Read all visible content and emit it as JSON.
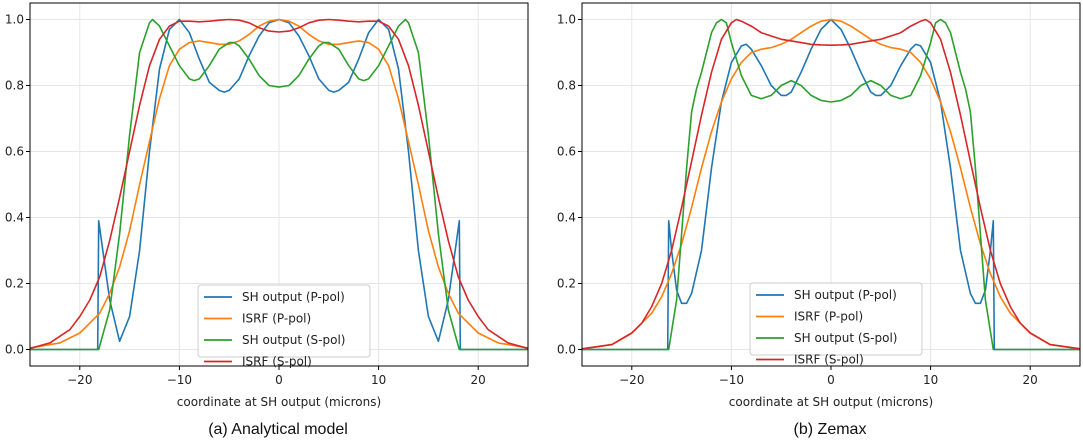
{
  "chart_data": [
    {
      "type": "line",
      "caption": "(a) Analytical model",
      "xlabel": "coordinate at SH output (microns)",
      "ylabel": "",
      "xlim": [
        -25,
        25
      ],
      "ylim": [
        -0.05,
        1.05
      ],
      "xticks": [
        -20,
        -10,
        0,
        10,
        20
      ],
      "xtick_labels": [
        "−20",
        "−10",
        "0",
        "10",
        "20"
      ],
      "yticks": [
        0.0,
        0.2,
        0.4,
        0.6,
        0.8,
        1.0
      ],
      "ytick_labels": [
        "0.0",
        "0.2",
        "0.4",
        "0.6",
        "0.8",
        "1.0"
      ],
      "grid": true,
      "legend_position": "lower-center",
      "symmetric_about_zero": true,
      "series": [
        {
          "name": "SH output (P-pol)",
          "color": "#1f77b4",
          "x": [
            -25,
            -18.2,
            -18.1,
            -17,
            -16,
            -15,
            -14,
            -13,
            -12,
            -11,
            -10,
            -9,
            -8,
            -7,
            -6,
            -5.5,
            -5,
            -4,
            -3,
            -2,
            -1,
            0
          ],
          "y": [
            0,
            0,
            0.39,
            0.15,
            0.025,
            0.1,
            0.3,
            0.6,
            0.85,
            0.97,
            1.0,
            0.96,
            0.88,
            0.81,
            0.785,
            0.78,
            0.785,
            0.82,
            0.89,
            0.95,
            0.99,
            1.0
          ]
        },
        {
          "name": "ISRF (P-pol)",
          "color": "#ff7f0e",
          "x": [
            -25,
            -22,
            -20,
            -18,
            -17,
            -16,
            -15,
            -14,
            -13,
            -12,
            -11,
            -10,
            -9,
            -8,
            -7,
            -6,
            -5,
            -4,
            -3,
            -2,
            -1,
            0
          ],
          "y": [
            0.005,
            0.02,
            0.05,
            0.11,
            0.17,
            0.25,
            0.36,
            0.5,
            0.63,
            0.76,
            0.86,
            0.91,
            0.93,
            0.935,
            0.93,
            0.925,
            0.925,
            0.935,
            0.955,
            0.98,
            0.995,
            1.0
          ]
        },
        {
          "name": "SH output (S-pol)",
          "color": "#2ca02c",
          "x": [
            -25,
            -18.1,
            -17,
            -16,
            -15,
            -14,
            -13,
            -12.7,
            -12,
            -11,
            -10,
            -9,
            -8.5,
            -8,
            -7,
            -6,
            -5,
            -4.5,
            -4,
            -3,
            -2,
            -1,
            0
          ],
          "y": [
            0,
            0,
            0.12,
            0.35,
            0.65,
            0.9,
            0.99,
            1.0,
            0.98,
            0.92,
            0.86,
            0.82,
            0.815,
            0.82,
            0.86,
            0.91,
            0.93,
            0.93,
            0.92,
            0.88,
            0.83,
            0.8,
            0.795
          ]
        },
        {
          "name": "ISRF (S-pol)",
          "color": "#d62728",
          "x": [
            -25,
            -23,
            -21,
            -20,
            -19,
            -18,
            -17,
            -16,
            -15,
            -14,
            -13,
            -12,
            -11,
            -10,
            -9,
            -8,
            -7,
            -6,
            -5,
            -4,
            -3,
            -2,
            -1,
            0
          ],
          "y": [
            0.003,
            0.02,
            0.06,
            0.1,
            0.15,
            0.22,
            0.33,
            0.46,
            0.6,
            0.74,
            0.86,
            0.94,
            0.98,
            0.995,
            0.995,
            0.993,
            0.995,
            0.998,
            1.0,
            0.998,
            0.99,
            0.975,
            0.965,
            0.962
          ]
        }
      ]
    },
    {
      "type": "line",
      "caption": "(b) Zemax",
      "xlabel": "coordinate at SH output (microns)",
      "ylabel": "",
      "xlim": [
        -25,
        25
      ],
      "ylim": [
        -0.05,
        1.05
      ],
      "xticks": [
        -20,
        -10,
        0,
        10,
        20
      ],
      "xtick_labels": [
        "−20",
        "−10",
        "0",
        "10",
        "20"
      ],
      "yticks": [
        0.0,
        0.2,
        0.4,
        0.6,
        0.8,
        1.0
      ],
      "ytick_labels": [
        "0.0",
        "0.2",
        "0.4",
        "0.6",
        "0.8",
        "1.0"
      ],
      "grid": true,
      "legend_position": "lower-center",
      "symmetric_about_zero": true,
      "series": [
        {
          "name": "SH output (P-pol)",
          "color": "#1f77b4",
          "x": [
            -25,
            -16.4,
            -16.3,
            -16,
            -15.5,
            -15,
            -14.5,
            -14,
            -13,
            -12,
            -11,
            -10,
            -9,
            -8.5,
            -8,
            -7,
            -6,
            -5,
            -4.5,
            -4,
            -3,
            -2,
            -1,
            0
          ],
          "y": [
            0,
            0,
            0.39,
            0.3,
            0.18,
            0.14,
            0.14,
            0.17,
            0.3,
            0.55,
            0.75,
            0.87,
            0.92,
            0.925,
            0.91,
            0.86,
            0.8,
            0.77,
            0.77,
            0.78,
            0.84,
            0.91,
            0.97,
            1.0
          ]
        },
        {
          "name": "ISRF (P-pol)",
          "color": "#ff7f0e",
          "x": [
            -25,
            -22,
            -20,
            -18,
            -17,
            -16,
            -15,
            -14,
            -13,
            -12,
            -11,
            -10,
            -9,
            -8,
            -7,
            -6,
            -5,
            -4,
            -3,
            -2,
            -1,
            0
          ],
          "y": [
            0.002,
            0.015,
            0.05,
            0.11,
            0.16,
            0.23,
            0.32,
            0.43,
            0.55,
            0.66,
            0.75,
            0.82,
            0.87,
            0.9,
            0.91,
            0.915,
            0.925,
            0.94,
            0.96,
            0.98,
            0.995,
            1.0
          ]
        },
        {
          "name": "SH output (S-pol)",
          "color": "#2ca02c",
          "x": [
            -25,
            -16.3,
            -15.5,
            -15,
            -14.5,
            -14,
            -13.5,
            -13,
            -12.5,
            -12,
            -11.5,
            -11,
            -10.5,
            -10,
            -9,
            -8,
            -7,
            -6,
            -5,
            -4,
            -3,
            -2,
            -1,
            0
          ],
          "y": [
            0,
            0,
            0.15,
            0.35,
            0.55,
            0.72,
            0.79,
            0.84,
            0.9,
            0.96,
            0.99,
            1.0,
            0.99,
            0.93,
            0.83,
            0.77,
            0.76,
            0.77,
            0.8,
            0.815,
            0.8,
            0.77,
            0.755,
            0.75
          ]
        },
        {
          "name": "ISRF (S-pol)",
          "color": "#d62728",
          "x": [
            -25,
            -22,
            -20,
            -19,
            -18,
            -17,
            -16,
            -15,
            -14,
            -13,
            -12,
            -11,
            -10,
            -9.5,
            -9,
            -8,
            -7,
            -6,
            -5,
            -4,
            -3,
            -2,
            -1,
            0
          ],
          "y": [
            0.002,
            0.015,
            0.05,
            0.08,
            0.13,
            0.2,
            0.3,
            0.43,
            0.57,
            0.71,
            0.84,
            0.94,
            0.99,
            1.0,
            0.995,
            0.98,
            0.96,
            0.95,
            0.94,
            0.935,
            0.93,
            0.925,
            0.923,
            0.922
          ]
        }
      ]
    }
  ]
}
